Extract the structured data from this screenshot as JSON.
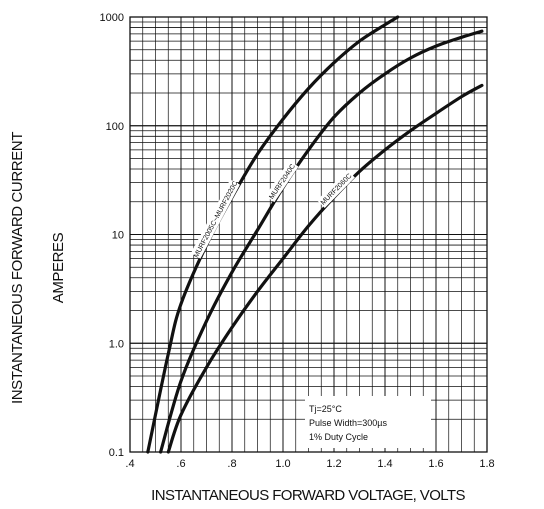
{
  "chart_data": {
    "type": "line",
    "title": "",
    "xlabel": "INSTANTANEOUS FORWARD VOLTAGE,  VOLTS",
    "ylabel_line1": "INSTANTANEOUS FORWARD CURRENT",
    "ylabel_line2": "AMPERES",
    "xlim": [
      0.4,
      1.8
    ],
    "ylim": [
      0.1,
      1000
    ],
    "yscale": "log",
    "grid": true,
    "x_ticks": [
      0.4,
      0.6,
      0.8,
      1.0,
      1.2,
      1.4,
      1.6,
      1.8
    ],
    "x_tick_labels": [
      ".4",
      ".6",
      ".8",
      "1.0",
      "1.2",
      "1.4",
      "1.6",
      "1.8"
    ],
    "y_ticks": [
      0.1,
      1,
      10,
      100,
      1000
    ],
    "y_tick_labels": [
      "0.1",
      "1.0",
      "10",
      "100",
      "1000"
    ],
    "series": [
      {
        "name": "MURF2005C~MURF2020C",
        "x": [
          0.47,
          0.55,
          0.6,
          0.7,
          0.8,
          0.9,
          1.0,
          1.1,
          1.2,
          1.3,
          1.4,
          1.45
        ],
        "y": [
          0.1,
          0.8,
          2.3,
          8,
          22,
          55,
          115,
          220,
          380,
          600,
          850,
          1000
        ]
      },
      {
        "name": "MURF2040C",
        "x": [
          0.52,
          0.6,
          0.7,
          0.8,
          0.9,
          1.0,
          1.1,
          1.2,
          1.3,
          1.4,
          1.5,
          1.6,
          1.7,
          1.78
        ],
        "y": [
          0.1,
          0.45,
          1.6,
          4.5,
          11,
          27,
          60,
          120,
          200,
          300,
          420,
          540,
          650,
          740
        ]
      },
      {
        "name": "MURF2060C",
        "x": [
          0.55,
          0.6,
          0.7,
          0.8,
          0.9,
          1.0,
          1.1,
          1.2,
          1.3,
          1.4,
          1.5,
          1.6,
          1.7,
          1.78
        ],
        "y": [
          0.1,
          0.22,
          0.6,
          1.4,
          3.0,
          6.0,
          12,
          22,
          38,
          60,
          90,
          130,
          185,
          235
        ]
      }
    ],
    "annotation_lines": [
      "Tj=25°C",
      "Pulse Width=300µs",
      "1% Duty Cycle"
    ]
  }
}
